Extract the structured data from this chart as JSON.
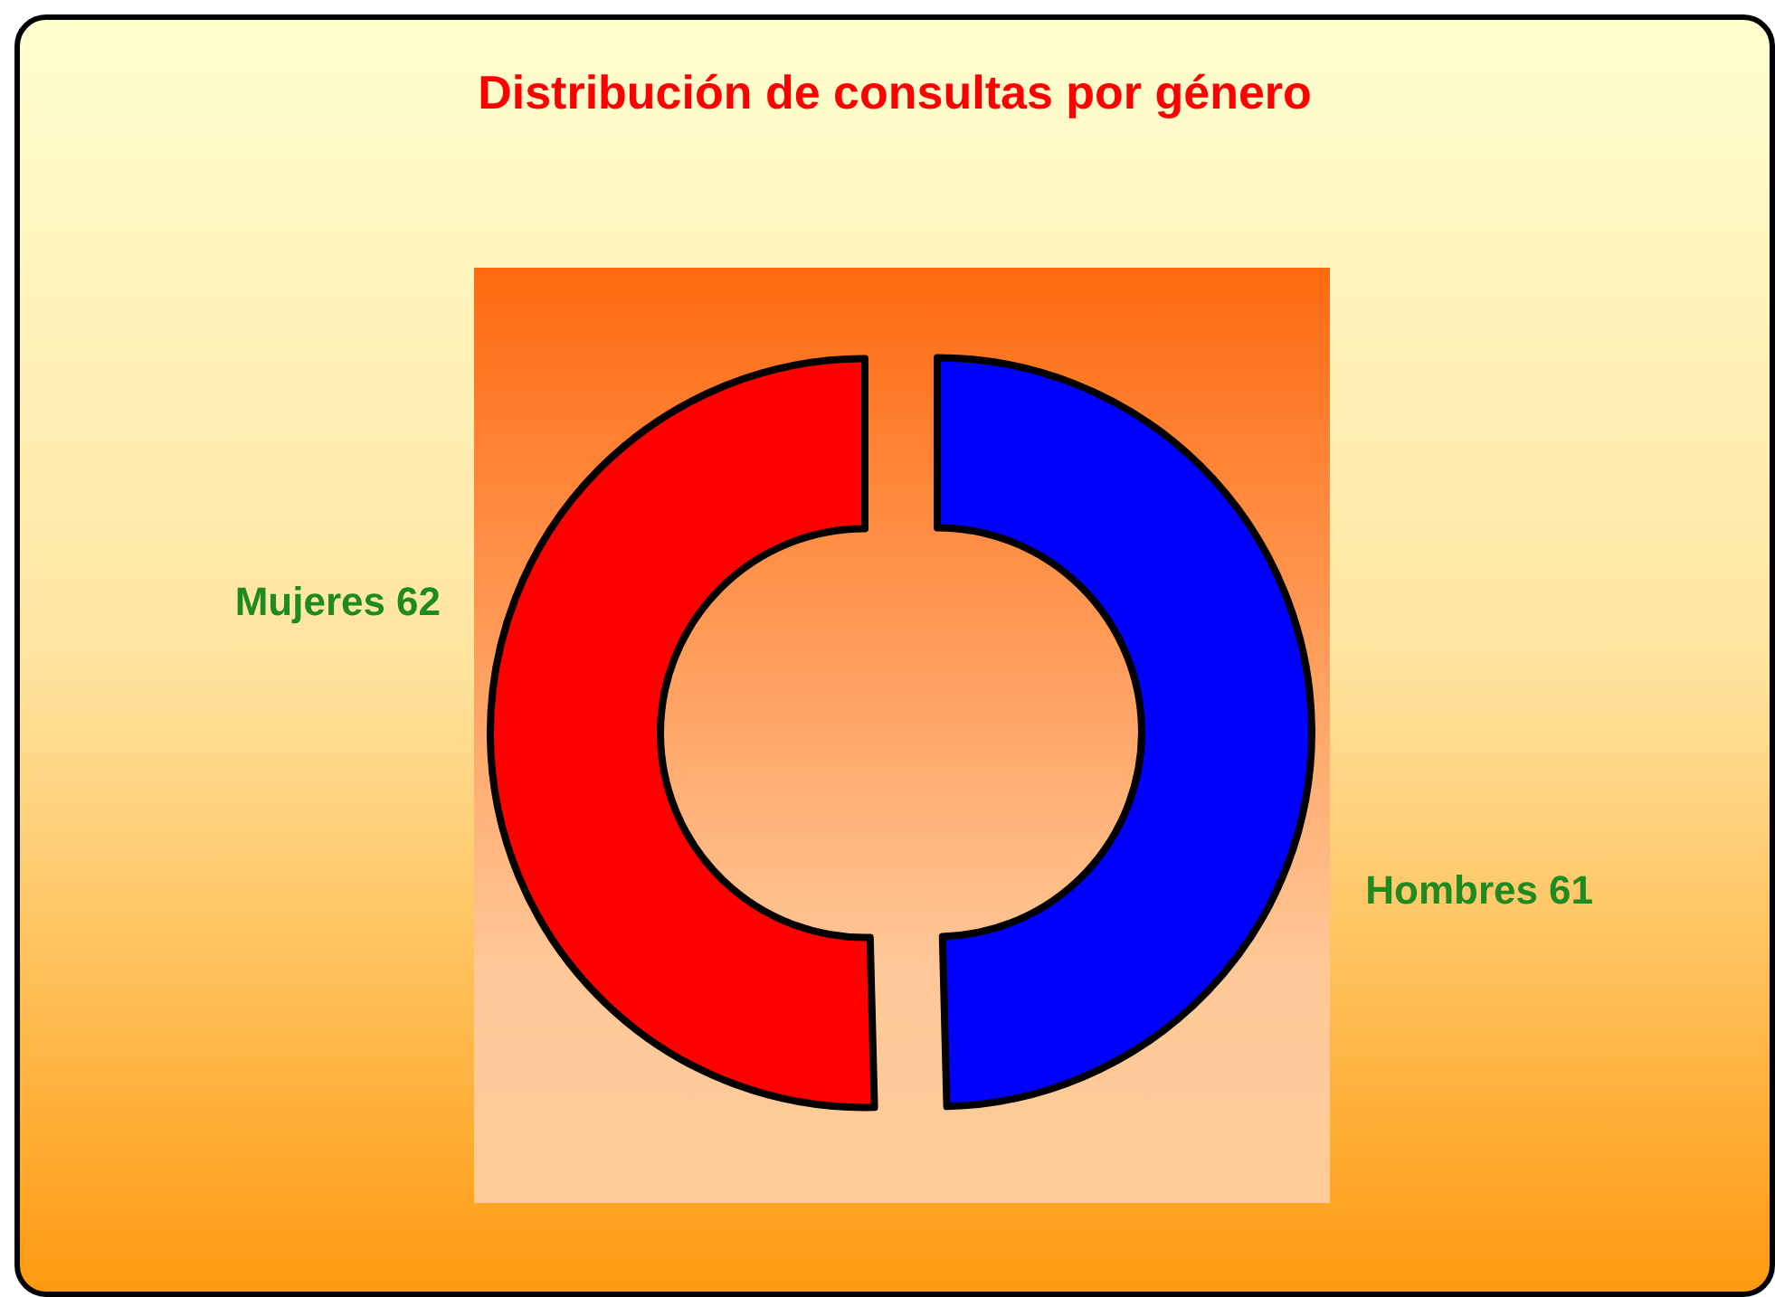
{
  "chart_data": {
    "type": "donut",
    "title": "Distribución de consultas por género",
    "categories": [
      "Hombres",
      "Mujeres"
    ],
    "values": [
      61,
      62
    ],
    "colors": [
      "#0000ff",
      "#ff0000"
    ],
    "data_labels": true,
    "legend": false
  }
}
